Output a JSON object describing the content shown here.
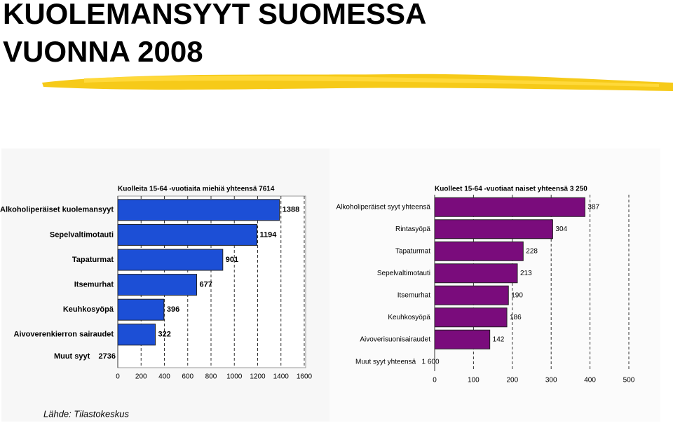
{
  "title_lines": [
    "KUOLEMANSYYT SUOMESSA",
    "VUONNA 2008"
  ],
  "source": "Lähde: Tilastokeskus",
  "chart_data": [
    {
      "type": "bar",
      "orientation": "horizontal",
      "title": "Kuolleita 15-64 -vuotiaita miehiä yhteensä 7614",
      "categories": [
        "Alkoholiperäiset kuolemansyyt",
        "Sepelvaltimotauti",
        "Tapaturmat",
        "Itsemurhat",
        "Keuhkosyöpä",
        "Aivoverenkierron sairaudet"
      ],
      "values": [
        1388,
        1194,
        901,
        677,
        396,
        322
      ],
      "color": "#1c4fd6",
      "annotation": "Muut syyt    2736",
      "xlim": [
        0,
        1600
      ],
      "xticks": [
        0,
        200,
        400,
        600,
        800,
        1000,
        1200,
        1400,
        1600
      ],
      "grid": true
    },
    {
      "type": "bar",
      "orientation": "horizontal",
      "title": "Kuolleet 15-64 -vuotiaat naiset yhteensä 3 250",
      "categories": [
        "Alkoholiperäiset syyt yhteensä",
        "Rintasyöpä",
        "Tapaturmat",
        "Sepelvaltimotauti",
        "Itsemurhat",
        "Keuhkosyöpä",
        "Aivoverisuonisairaudet"
      ],
      "values": [
        387,
        304,
        228,
        213,
        190,
        186,
        142
      ],
      "color": "#7a0c7c",
      "annotation": "Muut syyt yhteensä   1 600",
      "xlim": [
        0,
        500
      ],
      "xticks": [
        0,
        100,
        200,
        300,
        400,
        500
      ],
      "grid": true
    }
  ]
}
